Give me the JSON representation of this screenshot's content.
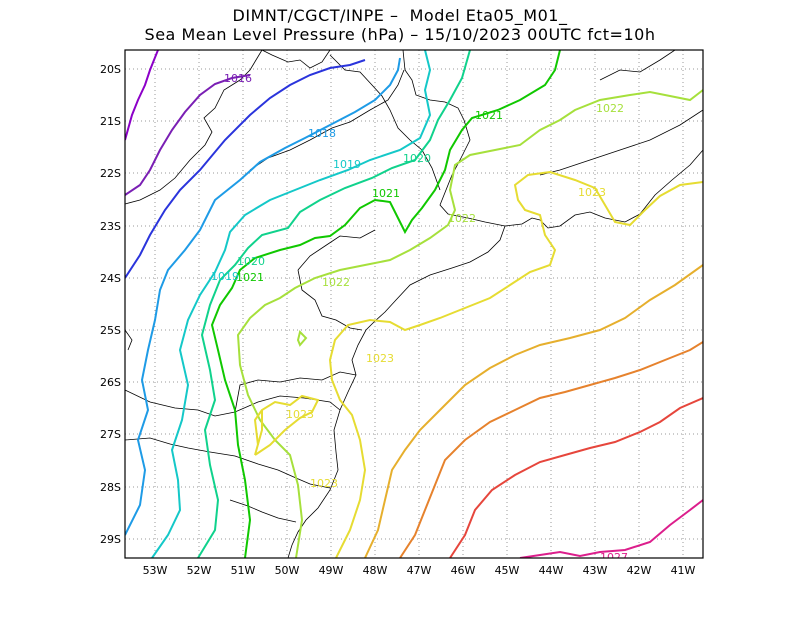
{
  "title": {
    "line1": "DIMNT/CGCT/INPE –  Model Eta05_M01_",
    "line2": "Sea Mean Level Pressure (hPa) – 15/10/2023 00UTC fct=10h"
  },
  "axes": {
    "lat_labels": [
      "20S",
      "21S",
      "22S",
      "23S",
      "24S",
      "25S",
      "26S",
      "27S",
      "28S",
      "29S"
    ],
    "lon_labels": [
      "53W",
      "52W",
      "51W",
      "50W",
      "49W",
      "48W",
      "47W",
      "46W",
      "45W",
      "44W",
      "43W",
      "42W",
      "41W"
    ]
  },
  "contour_labels": {
    "c1016": "1016",
    "c1018": "1018",
    "c1019a": "1019",
    "c1019b": "1019",
    "c1020a": "1020",
    "c1020b": "1020",
    "c1021a": "1021",
    "c1021b": "1021",
    "c1021c": "1021",
    "c1022a": "1022",
    "c1022b": "1022",
    "c1022c": "1022",
    "c1023a": "1023",
    "c1023b": "1023",
    "c1023c": "1023",
    "c1023d": "1023",
    "c1027": "1027"
  },
  "colors": {
    "c1015": "#8c00c8",
    "c1016": "#7a1fb4",
    "c1017": "#2a34dc",
    "c1018": "#1e9be6",
    "c1019": "#14c8c8",
    "c1020": "#10d28c",
    "c1021": "#10c800",
    "c1022": "#a6e03c",
    "c1023": "#e6dc32",
    "c1024": "#e6af2d",
    "c1025": "#e6822d",
    "c1026": "#e6463c",
    "c1027": "#dc1e8c",
    "grid": "#9a9a9a",
    "coast": "#000000"
  }
}
